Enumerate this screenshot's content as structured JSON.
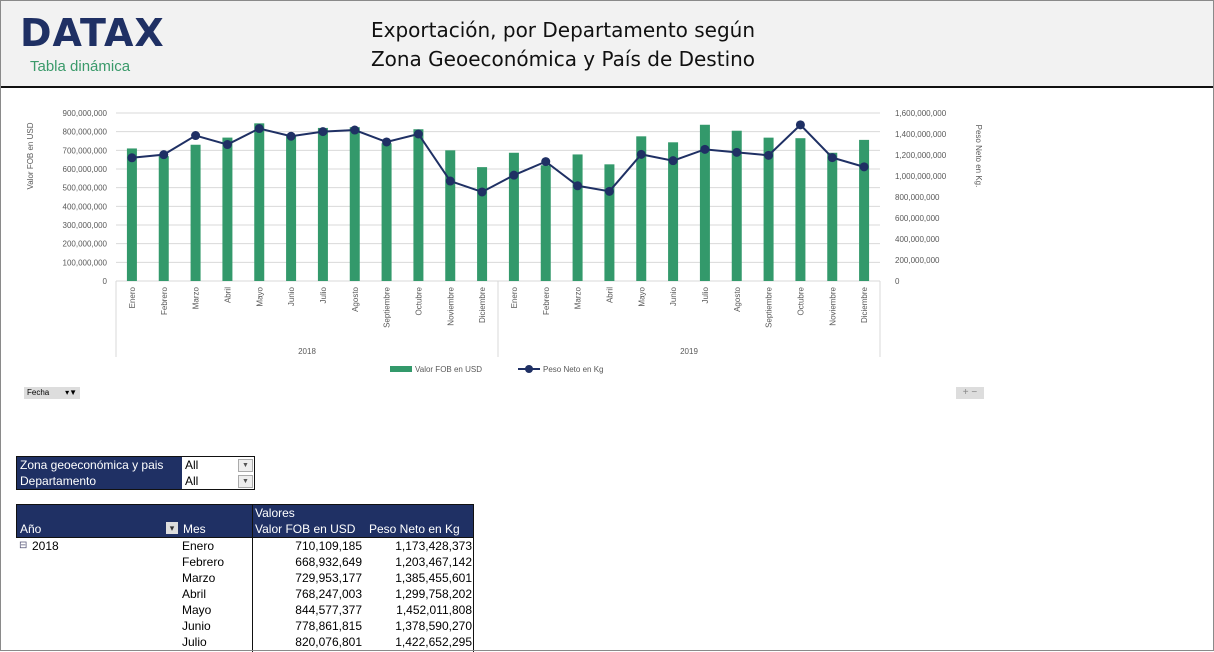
{
  "header": {
    "logo": "DATAX",
    "subtitle": "Tabla dinámica",
    "title_line1": "Exportación, por Departamento según",
    "title_line2": "Zona Geoeconómica y País de Destino"
  },
  "chart_data": {
    "type": "bar+line",
    "years": [
      "2018",
      "2019"
    ],
    "categories": [
      "Enero",
      "Febrero",
      "Marzo",
      "Abril",
      "Mayo",
      "Junio",
      "Julio",
      "Agosto",
      "Septiembre",
      "Octubre",
      "Noviembre",
      "Diciembre",
      "Enero",
      "Febrero",
      "Marzo",
      "Abril",
      "Mayo",
      "Junio",
      "Julio",
      "Agosto",
      "Septiembre",
      "Octubre",
      "Noviembre",
      "Diciembre"
    ],
    "ylabel": "Valor FOB en USD",
    "y2label": "Peso Neto en Kg.",
    "ylim": [
      0,
      900000000
    ],
    "y2lim": [
      0,
      1600000000
    ],
    "yticks": [
      "0",
      "100,000,000",
      "200,000,000",
      "300,000,000",
      "400,000,000",
      "500,000,000",
      "600,000,000",
      "700,000,000",
      "800,000,000",
      "900,000,000"
    ],
    "y2ticks": [
      "0",
      "200,000,000",
      "400,000,000",
      "600,000,000",
      "800,000,000",
      "1,000,000,000",
      "1,200,000,000",
      "1,400,000,000",
      "1,600,000,000"
    ],
    "grid": true,
    "legend": "bottom",
    "series": [
      {
        "name": "Valor FOB en USD",
        "type": "bar",
        "axis": "left",
        "color": "#33996b",
        "values": [
          710109185,
          668932649,
          729953177,
          768247003,
          844577377,
          778861815,
          820076801,
          824000000,
          738000000,
          813000000,
          700000000,
          610000000,
          687000000,
          620000000,
          678000000,
          625000000,
          775000000,
          743000000,
          837000000,
          805000000,
          768000000,
          765000000,
          687000000,
          756000000
        ]
      },
      {
        "name": "Peso Neto en Kg",
        "type": "line",
        "axis": "right",
        "color": "#1f3064",
        "values": [
          1173428373,
          1203467142,
          1385455601,
          1299758202,
          1452011808,
          1378590270,
          1422652295,
          1438000000,
          1324000000,
          1400000000,
          952000000,
          848000000,
          1008000000,
          1137000000,
          907000000,
          854000000,
          1206000000,
          1146000000,
          1254000000,
          1225000000,
          1197000000,
          1487000000,
          1175000000,
          1087000000
        ]
      }
    ]
  },
  "controls": {
    "fecha": "Fecha",
    "zoom": "+ −"
  },
  "filters": [
    {
      "label": "Zona geoeconómica y pais",
      "value": "All"
    },
    {
      "label": "Departamento",
      "value": "All"
    }
  ],
  "pivot": {
    "values_label": "Valores",
    "col_year": "Año",
    "col_month": "Mes",
    "col_fob": "Valor FOB en USD",
    "col_peso": "Peso Neto en Kg",
    "year": "2018",
    "rows": [
      {
        "mes": "Enero",
        "fob": "710,109,185",
        "peso": "1,173,428,373"
      },
      {
        "mes": "Febrero",
        "fob": "668,932,649",
        "peso": "1,203,467,142"
      },
      {
        "mes": "Marzo",
        "fob": "729,953,177",
        "peso": "1,385,455,601"
      },
      {
        "mes": "Abril",
        "fob": "768,247,003",
        "peso": "1,299,758,202"
      },
      {
        "mes": "Mayo",
        "fob": "844,577,377",
        "peso": "1,452,011,808"
      },
      {
        "mes": "Junio",
        "fob": "778,861,815",
        "peso": "1,378,590,270"
      },
      {
        "mes": "Julio",
        "fob": "820,076,801",
        "peso": "1,422,652,295"
      }
    ]
  }
}
